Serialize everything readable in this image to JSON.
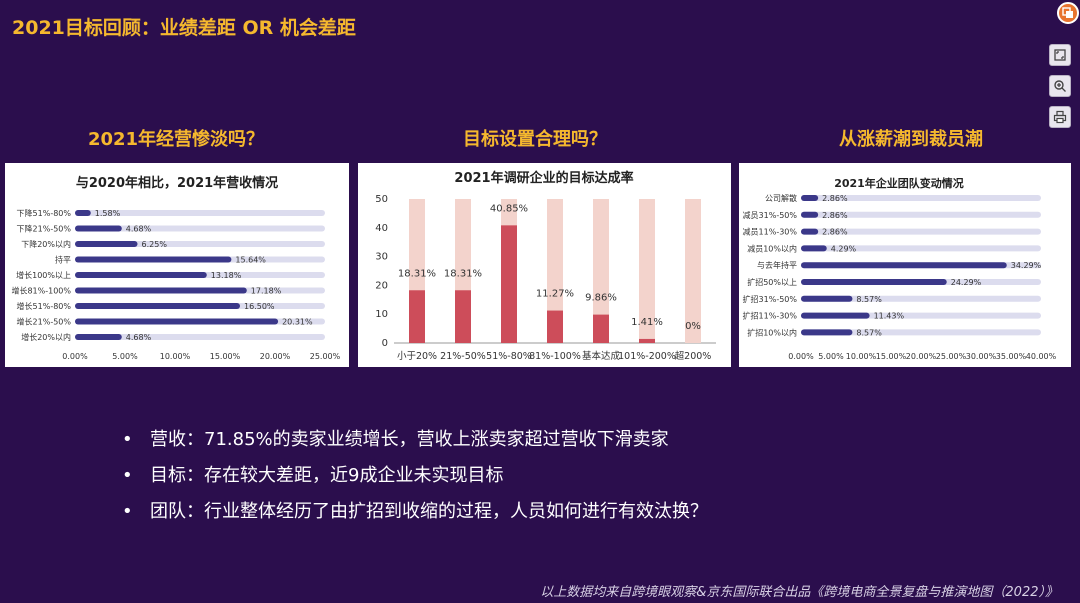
{
  "slide_title": "2021目标回顾：业绩差距 OR 机会差距",
  "section_headings": [
    "2021年经营惨淡吗？",
    "目标设置合理吗？",
    "从涨薪潮到裁员潮"
  ],
  "bullets": [
    "营收：71.85%的卖家业绩增长，营收上涨卖家超过营收下滑卖家",
    "目标：存在较大差距，近9成企业未实现目标",
    "团队：行业整体经历了由扩招到收缩的过程，人员如何进行有效汰换？"
  ],
  "footer": "以上数据均来自跨境眼观察&京东国际联合出品《跨境电商全景复盘与推演地图（2022）》",
  "toolbar": {
    "top_icon": "stack-icon",
    "buttons": [
      "fit-page-icon",
      "zoom-in-icon",
      "print-icon"
    ]
  },
  "colors": {
    "background": "#2b0e4d",
    "heading": "#f5b82e",
    "bar_navy": "#3b3889",
    "bar_track": "#dcdcee",
    "bar_red": "#cd4d5a",
    "bar_pink": "#f3d3cc"
  },
  "chart_data": [
    {
      "type": "bar",
      "orientation": "horizontal",
      "title": "与2020年相比，2021年营收情况",
      "categories": [
        "下降51%-80%",
        "下降21%-50%",
        "下降20%以内",
        "持平",
        "增长100%以上",
        "增长81%-100%",
        "增长51%-80%",
        "增长21%-50%",
        "增长20%以内"
      ],
      "values": [
        1.58,
        4.68,
        6.25,
        15.64,
        13.18,
        17.18,
        16.5,
        20.31,
        4.68
      ],
      "value_labels": [
        "1.58%",
        "4.68%",
        "6.25%",
        "15.64%",
        "13.18%",
        "17.18%",
        "16.50%",
        "20.31%",
        "4.68%"
      ],
      "xlim": [
        0,
        25
      ],
      "xticks": [
        "0.00%",
        "5.00%",
        "10.00%",
        "15.00%",
        "20.00%",
        "25.00%"
      ],
      "track_max": 25
    },
    {
      "type": "bar",
      "orientation": "vertical",
      "title": "2021年调研企业的目标达成率",
      "categories": [
        "小于20%",
        "21%-50%",
        "51%-80%",
        "81%-100%",
        "基本达成",
        "101%-200%",
        "超200%"
      ],
      "values": [
        18.31,
        18.31,
        40.85,
        11.27,
        9.86,
        1.41,
        0
      ],
      "value_labels": [
        "18.31%",
        "18.31%",
        "40.85%",
        "11.27%",
        "9.86%",
        "1.41%",
        "0%"
      ],
      "ylim": [
        0,
        50
      ],
      "yticks": [
        "0",
        "10",
        "20",
        "30",
        "40",
        "50"
      ],
      "track_max": 50
    },
    {
      "type": "bar",
      "orientation": "horizontal",
      "title": "2021年企业团队变动情况",
      "categories": [
        "公司解散",
        "减员31%-50%",
        "减员11%-30%",
        "减员10%以内",
        "与去年持平",
        "扩招50%以上",
        "扩招31%-50%",
        "扩招11%-30%",
        "扩招10%以内"
      ],
      "values": [
        2.86,
        2.86,
        2.86,
        4.29,
        34.29,
        24.29,
        8.57,
        11.43,
        8.57
      ],
      "value_labels": [
        "2.86%",
        "2.86%",
        "2.86%",
        "4.29%",
        "34.29%",
        "24.29%",
        "8.57%",
        "11.43%",
        "8.57%"
      ],
      "xlim": [
        0,
        40
      ],
      "xticks": [
        "0.00%",
        "5.00%",
        "10.00%",
        "15.00%",
        "20.00%",
        "25.00%",
        "30.00%",
        "35.00%",
        "40.00%"
      ],
      "track_max": 40
    }
  ]
}
